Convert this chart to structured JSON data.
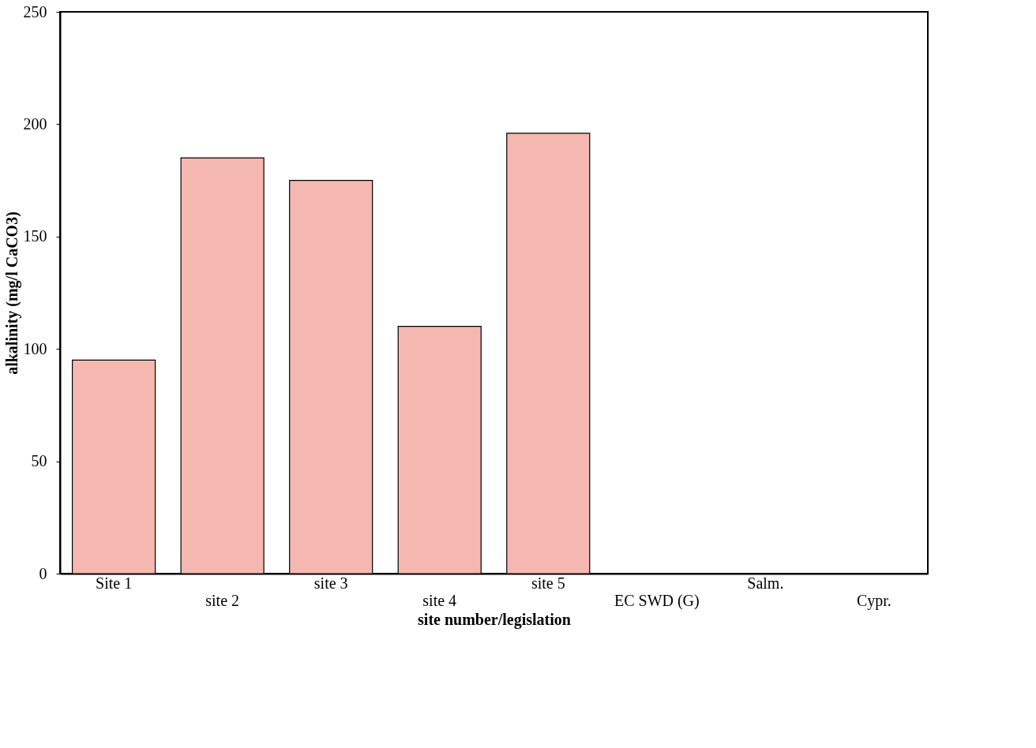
{
  "chart_data": {
    "type": "bar",
    "xlabel": "site number/legislation",
    "ylabel": "alkalinity (mg/l CaCO3)",
    "categories": [
      "Site 1",
      "site 2",
      "site 3",
      "site 4",
      "site 5",
      "EC SWD (G)",
      "Salm.",
      "Cypr."
    ],
    "values": [
      95,
      185,
      175,
      110,
      196,
      null,
      null,
      null
    ],
    "color": "#f4b8b0",
    "ylim": [
      0,
      250
    ],
    "yticks": [
      0,
      50,
      100,
      150,
      200,
      250
    ],
    "grid": false
  }
}
